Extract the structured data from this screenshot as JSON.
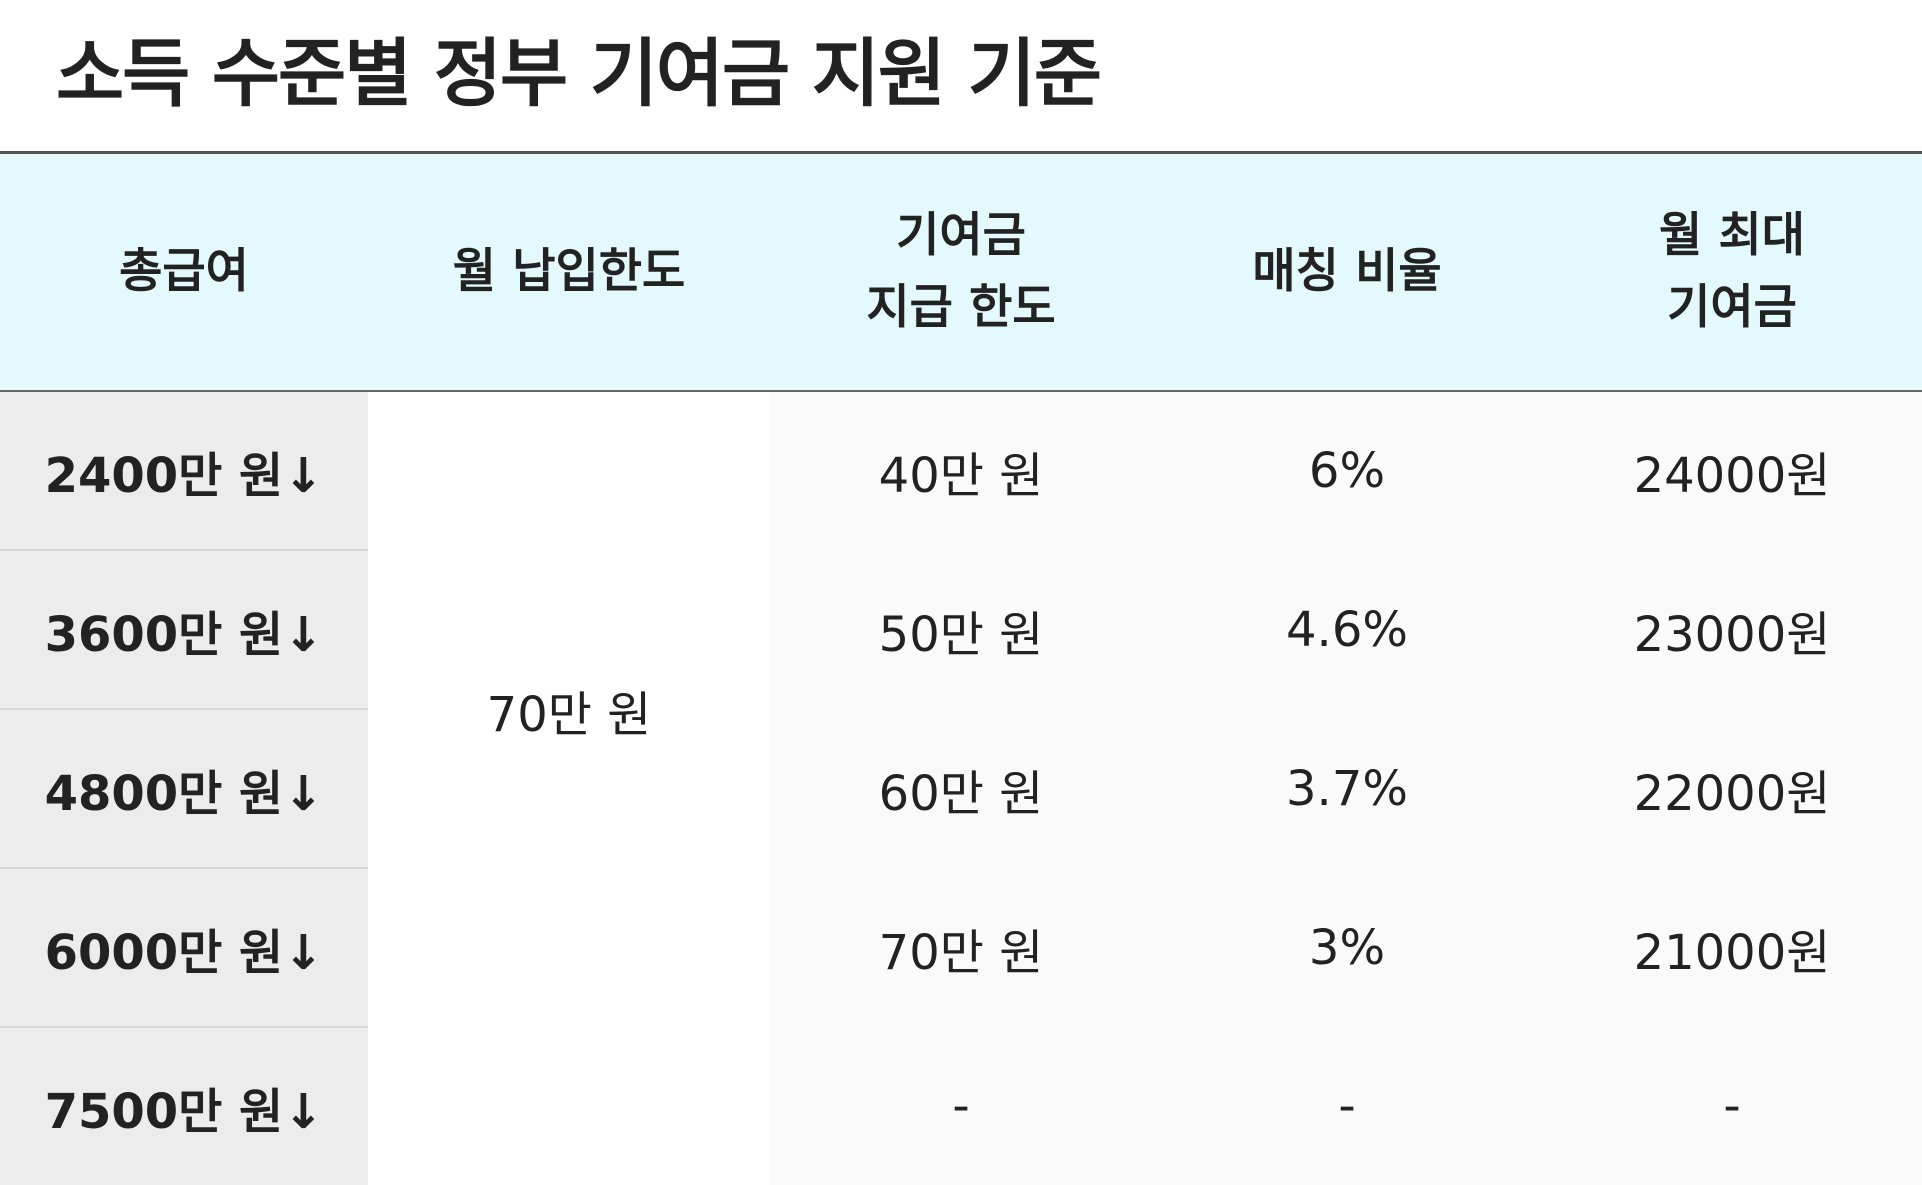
{
  "title": "소득 수준별 정부 기여금 지원 기준",
  "table": {
    "header": [
      [
        "총급여"
      ],
      [
        "월 납입한도"
      ],
      [
        "기여금",
        "지급 한도"
      ],
      [
        "매칭 비율"
      ],
      [
        "월 최대",
        "기여금"
      ]
    ],
    "monthly_limit": "70만 원",
    "rows": [
      [
        "2400만 원↓",
        "40만 원",
        "6%",
        "24000원"
      ],
      [
        "3600만 원↓",
        "50만 원",
        "4.6%",
        "23000원"
      ],
      [
        "4800만 원↓",
        "60만 원",
        "3.7%",
        "22000원"
      ],
      [
        "6000만 원↓",
        "70만 원",
        "3%",
        "21000원"
      ],
      [
        "7500만 원↓",
        "-",
        "-",
        "-"
      ]
    ]
  }
}
